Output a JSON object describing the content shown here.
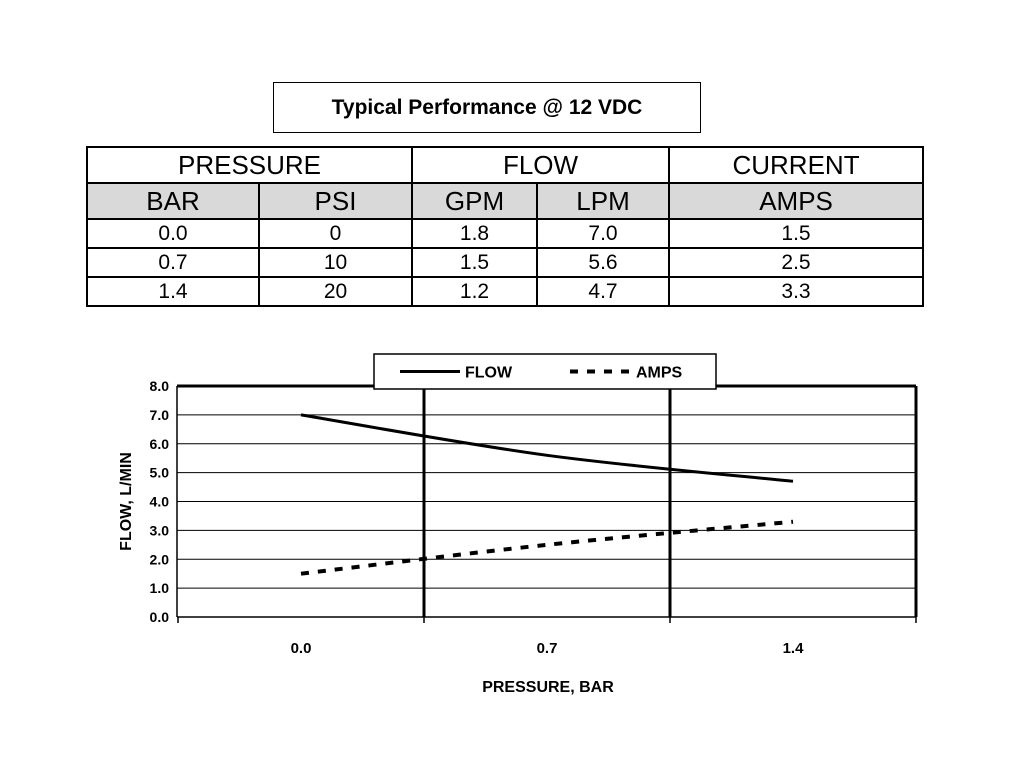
{
  "title": "Typical Performance @ 12 VDC",
  "table": {
    "groups": [
      "PRESSURE",
      "FLOW",
      "CURRENT"
    ],
    "units": [
      "BAR",
      "PSI",
      "GPM",
      "LPM",
      "AMPS"
    ],
    "rows": [
      [
        "0.0",
        "0",
        "1.8",
        "7.0",
        "1.5"
      ],
      [
        "0.7",
        "10",
        "1.5",
        "5.6",
        "2.5"
      ],
      [
        "1.4",
        "20",
        "1.2",
        "4.7",
        "3.3"
      ]
    ]
  },
  "chart_data": {
    "type": "line",
    "x": [
      0.0,
      0.7,
      1.4
    ],
    "x_tick_labels": [
      "0.0",
      "0.7",
      "1.4"
    ],
    "xlabel": "PRESSURE, BAR",
    "ylabel": "FLOW, L/MIN",
    "ylim": [
      0,
      8
    ],
    "y_ticks": [
      0,
      1,
      2,
      3,
      4,
      5,
      6,
      7,
      8
    ],
    "y_tick_labels": [
      "0.0",
      "1.0",
      "2.0",
      "3.0",
      "4.0",
      "5.0",
      "6.0",
      "7.0",
      "8.0"
    ],
    "grid": true,
    "legend_position": "top-center",
    "series": [
      {
        "name": "FLOW",
        "values": [
          7.0,
          5.6,
          4.7
        ],
        "style": "solid",
        "color": "#000000"
      },
      {
        "name": "AMPS",
        "values": [
          1.5,
          2.5,
          3.3
        ],
        "style": "dashed",
        "color": "#000000"
      }
    ]
  }
}
